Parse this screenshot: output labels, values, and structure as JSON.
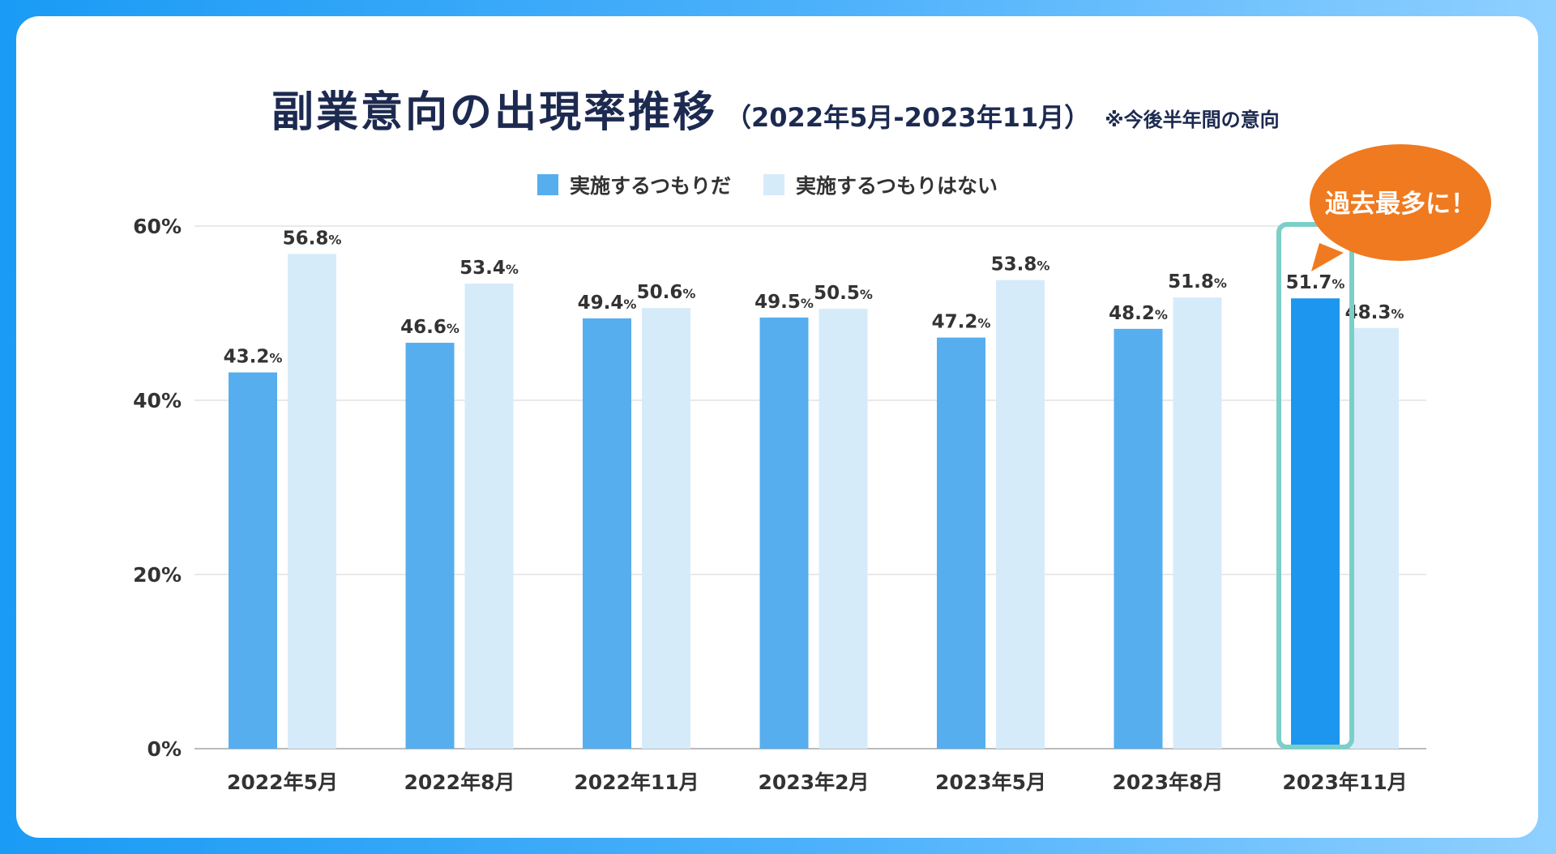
{
  "chart_data": {
    "type": "bar",
    "title": "副業意向の出現率推移",
    "subtitle": "（2022年5月-2023年11月）",
    "note": "※今後半年間の意向",
    "categories": [
      "2022年5月",
      "2022年8月",
      "2022年11月",
      "2023年2月",
      "2023年5月",
      "2023年8月",
      "2023年11月"
    ],
    "series": [
      {
        "name": "実施するつもりだ",
        "values": [
          43.2,
          46.6,
          49.4,
          49.5,
          47.2,
          48.2,
          51.7
        ],
        "color": "#56aeee"
      },
      {
        "name": "実施するつもりはない",
        "values": [
          56.8,
          53.4,
          50.6,
          50.5,
          53.8,
          51.8,
          48.3
        ],
        "color": "#d6ebfa"
      }
    ],
    "value_suffix": "%",
    "yticks": [
      "0%",
      "20%",
      "40%",
      "60%"
    ],
    "ylim": [
      0,
      60
    ],
    "grid": true,
    "legend_position": "top-center",
    "highlight": {
      "category_index": 6,
      "series_index": 0,
      "bar_color": "#1d96f0",
      "box_color": "#7ccfc8",
      "callout_text": "過去最多に！",
      "callout_color": "#f07a1f"
    },
    "colors": {
      "text": "#333333",
      "title": "#1d2a50",
      "grid": "#e2e2e2",
      "axis": "#bbbbbb"
    }
  }
}
